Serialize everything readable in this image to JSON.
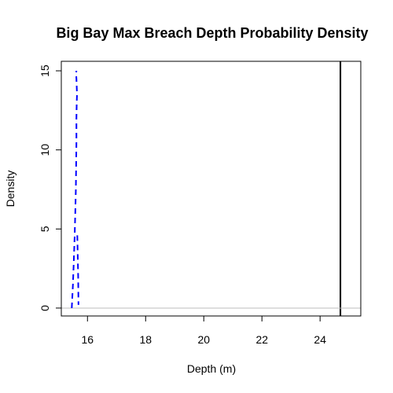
{
  "chart_data": {
    "type": "line",
    "title": "Big Bay Max Breach Depth Probability Density",
    "xlabel": "Depth (m)",
    "ylabel": "Density",
    "xlim": [
      15.1,
      25.4
    ],
    "ylim": [
      -0.5,
      15.6
    ],
    "x_ticks": [
      16,
      18,
      20,
      22,
      24
    ],
    "y_ticks": [
      0,
      5,
      10,
      15
    ],
    "x_tick_labels": [
      "16",
      "18",
      "20",
      "22",
      "24"
    ],
    "y_tick_labels": [
      "0",
      "5",
      "10",
      "15"
    ],
    "grid": false,
    "series": [
      {
        "style": "dashed",
        "color": "#0000ff",
        "x": [
          15.46,
          15.5,
          15.53,
          15.56,
          15.58,
          15.6,
          15.61,
          15.62,
          15.62,
          15.63,
          15.64,
          15.63,
          15.62,
          15.61,
          15.62
        ],
        "y": [
          0.0,
          1.5,
          3.0,
          4.6,
          6.0,
          7.5,
          9.0,
          10.5,
          12.0,
          13.0,
          13.5,
          14.0,
          14.5,
          14.8,
          15.0
        ]
      },
      {
        "style": "dashed",
        "color": "#0000ff",
        "x": [
          15.65,
          15.68,
          15.69
        ],
        "y": [
          4.6,
          2.0,
          0.2
        ]
      }
    ],
    "reference_lines": [
      {
        "orientation": "vertical",
        "x": 24.7,
        "color": "#000000",
        "style": "solid"
      },
      {
        "orientation": "horizontal",
        "y": 0,
        "color": "#bebebe",
        "style": "solid"
      }
    ]
  }
}
